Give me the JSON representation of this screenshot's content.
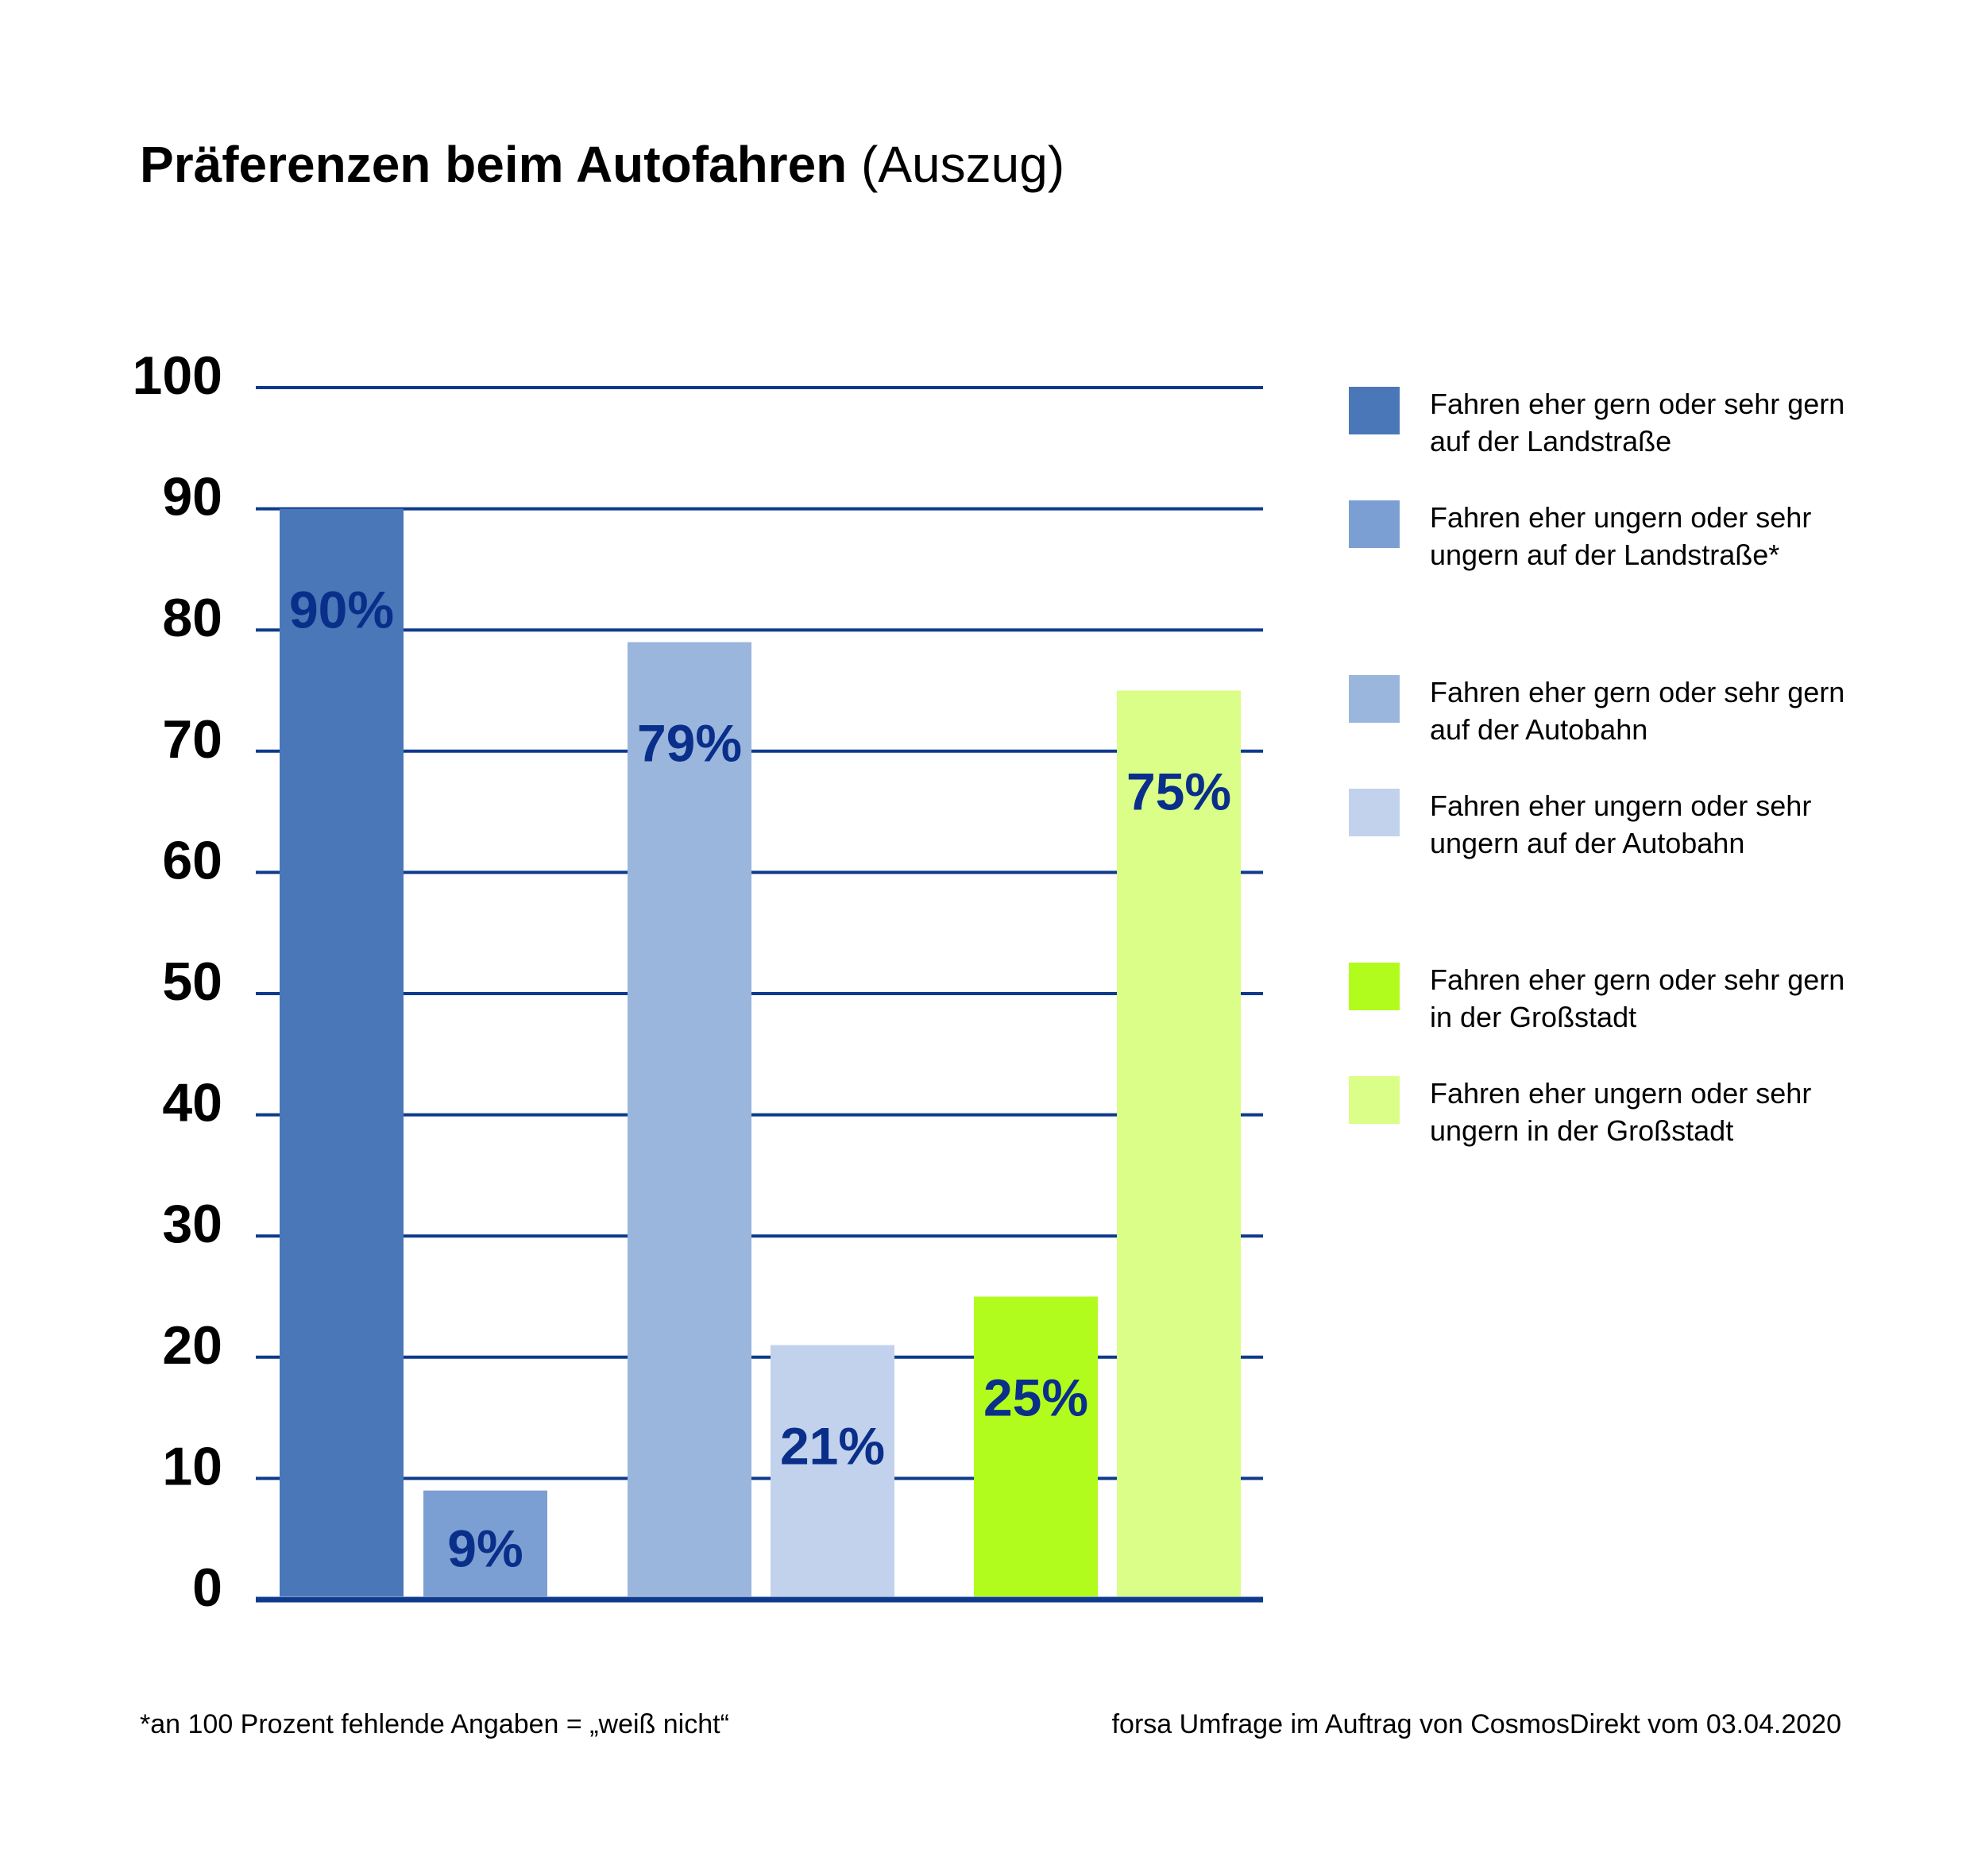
{
  "title": {
    "bold": "Präferenzen beim Autofahren",
    "light": "(Auszug)"
  },
  "chart_data": {
    "type": "bar",
    "ylim": [
      0,
      100
    ],
    "yticks": [
      0,
      10,
      20,
      30,
      40,
      50,
      60,
      70,
      80,
      90,
      100
    ],
    "grid": true,
    "legend_position": "right",
    "bars": [
      {
        "legend": "Fahren eher gern oder sehr gern auf der Landstraße",
        "value": 90,
        "label": "90%",
        "color": "#4a77b8"
      },
      {
        "legend": "Fahren eher ungern oder sehr ungern auf der Landstraße*",
        "value": 9,
        "label": "9%",
        "color": "#7c9fd3"
      },
      {
        "legend": "Fahren eher gern oder sehr gern auf der Autobahn",
        "value": 79,
        "label": "79%",
        "color": "#9bb6dd"
      },
      {
        "legend": "Fahren eher ungern oder sehr ungern auf der Autobahn",
        "value": 21,
        "label": "21%",
        "color": "#c2d2ec"
      },
      {
        "legend": "Fahren eher gern oder sehr gern in der Großstadt",
        "value": 25,
        "label": "25%",
        "color": "#b2fc1d"
      },
      {
        "legend": "Fahren eher ungern oder sehr ungern in der Großstadt",
        "value": 75,
        "label": "75%",
        "color": "#dafe88"
      }
    ],
    "gridline_color": "#0e3a8c",
    "label_color": "#0a2f8a"
  },
  "legend": [
    {
      "line1": "Fahren eher gern oder sehr gern",
      "line2": "auf der Landstraße"
    },
    {
      "line1": "Fahren eher ungern oder sehr",
      "line2": "ungern auf der Landstraße*"
    },
    {
      "line1": "Fahren eher gern oder sehr gern",
      "line2": "auf der Autobahn"
    },
    {
      "line1": "Fahren eher ungern oder sehr",
      "line2": "ungern auf der Autobahn"
    },
    {
      "line1": "Fahren eher gern oder sehr gern",
      "line2": "in der Großstadt"
    },
    {
      "line1": "Fahren eher ungern oder sehr",
      "line2": "ungern in der Großstadt"
    }
  ],
  "footnote": "*an 100 Prozent fehlende Angaben = „weiß nicht“",
  "source": "forsa Umfrage im Auftrag von CosmosDirekt vom 03.04.2020"
}
